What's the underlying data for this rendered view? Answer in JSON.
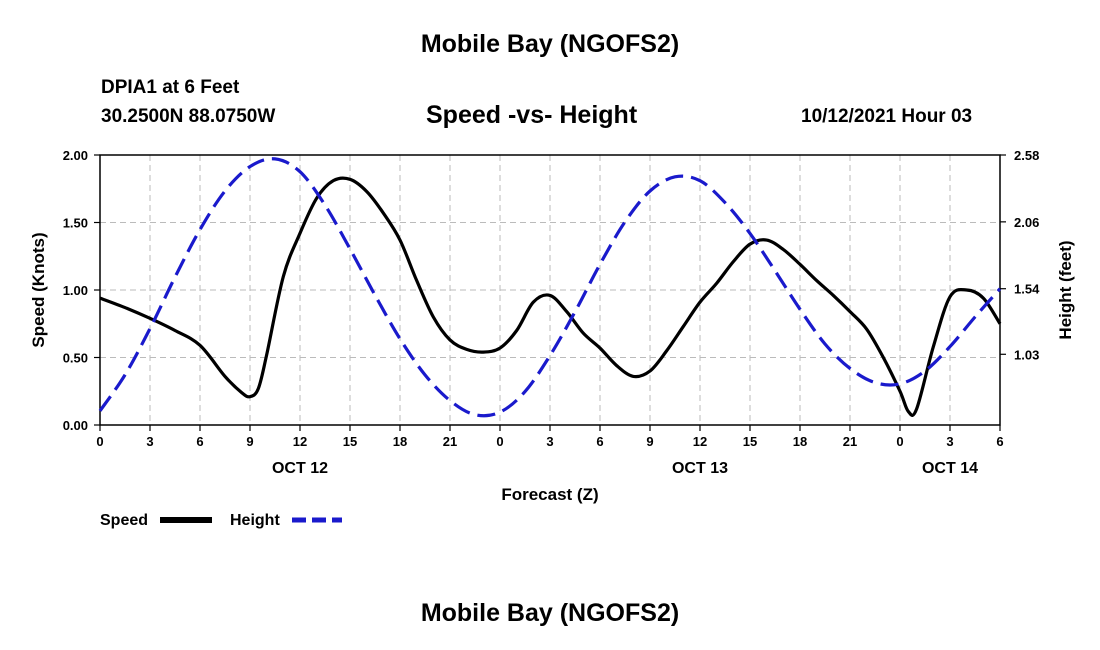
{
  "header": {
    "title": "Mobile Bay (NGOFS2)",
    "station": "DPIA1 at 6 Feet",
    "coords": "30.2500N  88.0750W",
    "subtitle": "Speed -vs- Height",
    "datetime": "10/12/2021 Hour 03"
  },
  "footer": {
    "title": "Mobile Bay (NGOFS2)"
  },
  "colors": {
    "speed": "#000000",
    "height": "#1a1acc",
    "grid": "#bbbbbb"
  },
  "chart_data": {
    "type": "line",
    "xlabel": "Forecast (Z)",
    "ylabel_left": "Speed (Knots)",
    "ylabel_right": "Height (feet)",
    "xlim": [
      0,
      54
    ],
    "ylim_left": [
      0,
      2.0
    ],
    "ylim_right": [
      0.48,
      2.58
    ],
    "grid": true,
    "legend_position": "bottom-left",
    "x_ticks": [
      0,
      3,
      6,
      9,
      12,
      15,
      18,
      21,
      24,
      27,
      30,
      33,
      36,
      39,
      42,
      45,
      48,
      51,
      54
    ],
    "x_tick_labels": [
      "0",
      "3",
      "6",
      "9",
      "12",
      "15",
      "18",
      "21",
      "0",
      "3",
      "6",
      "9",
      "12",
      "15",
      "18",
      "21",
      "0",
      "3",
      "6"
    ],
    "date_labels": [
      {
        "x": 12,
        "label": "OCT 12"
      },
      {
        "x": 36,
        "label": "OCT 13"
      },
      {
        "x": 51,
        "label": "OCT 14"
      }
    ],
    "y_left_ticks": [
      0,
      0.5,
      1.0,
      1.5,
      2.0
    ],
    "y_left_tick_labels": [
      "0.00",
      "0.50",
      "1.00",
      "1.50",
      "2.00"
    ],
    "y_right_ticks": [
      1.03,
      1.54,
      2.06,
      2.58
    ],
    "y_right_tick_labels": [
      "1.03",
      "1.54",
      "2.06",
      "2.58"
    ],
    "series": [
      {
        "name": "Speed",
        "axis": "left",
        "style": "solid",
        "x": [
          0,
          1.5,
          3,
          4.5,
          6,
          7.5,
          8.5,
          9,
          9.5,
          10,
          11,
          12,
          13,
          14,
          15,
          16,
          17,
          18,
          19,
          20,
          21,
          22,
          23,
          24,
          25,
          26,
          27,
          28,
          29,
          30,
          31,
          32,
          33,
          34,
          35,
          36,
          37,
          38,
          39,
          40,
          41,
          42,
          43,
          44,
          45,
          46,
          47,
          48,
          48.5,
          49,
          50,
          51,
          52,
          53,
          54
        ],
        "values": [
          0.94,
          0.87,
          0.79,
          0.7,
          0.59,
          0.36,
          0.24,
          0.21,
          0.27,
          0.52,
          1.1,
          1.42,
          1.68,
          1.81,
          1.82,
          1.73,
          1.57,
          1.37,
          1.07,
          0.8,
          0.63,
          0.56,
          0.54,
          0.57,
          0.7,
          0.91,
          0.96,
          0.84,
          0.68,
          0.57,
          0.44,
          0.36,
          0.4,
          0.55,
          0.73,
          0.91,
          1.05,
          1.21,
          1.34,
          1.37,
          1.3,
          1.19,
          1.07,
          0.96,
          0.84,
          0.71,
          0.5,
          0.25,
          0.1,
          0.12,
          0.58,
          0.95,
          1.0,
          0.94,
          0.75
        ]
      },
      {
        "name": "Height",
        "axis": "right",
        "style": "dashed",
        "x": [
          0,
          1.5,
          3,
          4.5,
          6,
          7.5,
          9,
          10.5,
          12,
          13.5,
          15,
          16.5,
          18,
          19.5,
          21,
          22.5,
          24,
          25.5,
          27,
          28.5,
          30,
          31.5,
          33,
          34.5,
          36,
          37.5,
          39,
          40.5,
          42,
          43.5,
          45,
          46.5,
          48,
          49.5,
          51,
          52.5,
          54
        ],
        "values": [
          0.59,
          0.87,
          1.23,
          1.63,
          2.0,
          2.3,
          2.49,
          2.55,
          2.45,
          2.19,
          1.85,
          1.49,
          1.15,
          0.87,
          0.67,
          0.56,
          0.58,
          0.74,
          1.02,
          1.36,
          1.73,
          2.06,
          2.3,
          2.41,
          2.38,
          2.21,
          1.97,
          1.68,
          1.38,
          1.11,
          0.92,
          0.81,
          0.8,
          0.9,
          1.09,
          1.32,
          1.54
        ]
      }
    ]
  }
}
